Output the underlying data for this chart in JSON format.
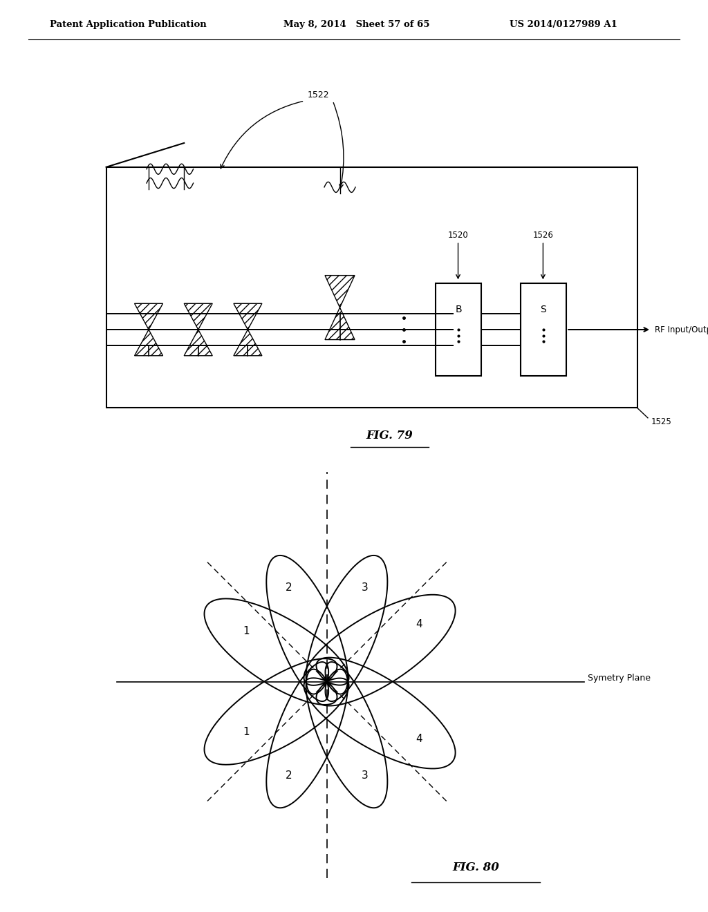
{
  "header_left": "Patent Application Publication",
  "header_mid": "May 8, 2014   Sheet 57 of 65",
  "header_right": "US 2014/0127989 A1",
  "fig79_label": "FIG. 79",
  "fig80_label": "FIG. 80",
  "symmetry_label": "Symetry Plane",
  "bg_color": "#ffffff",
  "fg_color": "#000000",
  "label_1522": "1522",
  "label_1520": "1520",
  "label_1526": "1526",
  "label_1525": "1525",
  "rf_label": "RF Input/Output"
}
